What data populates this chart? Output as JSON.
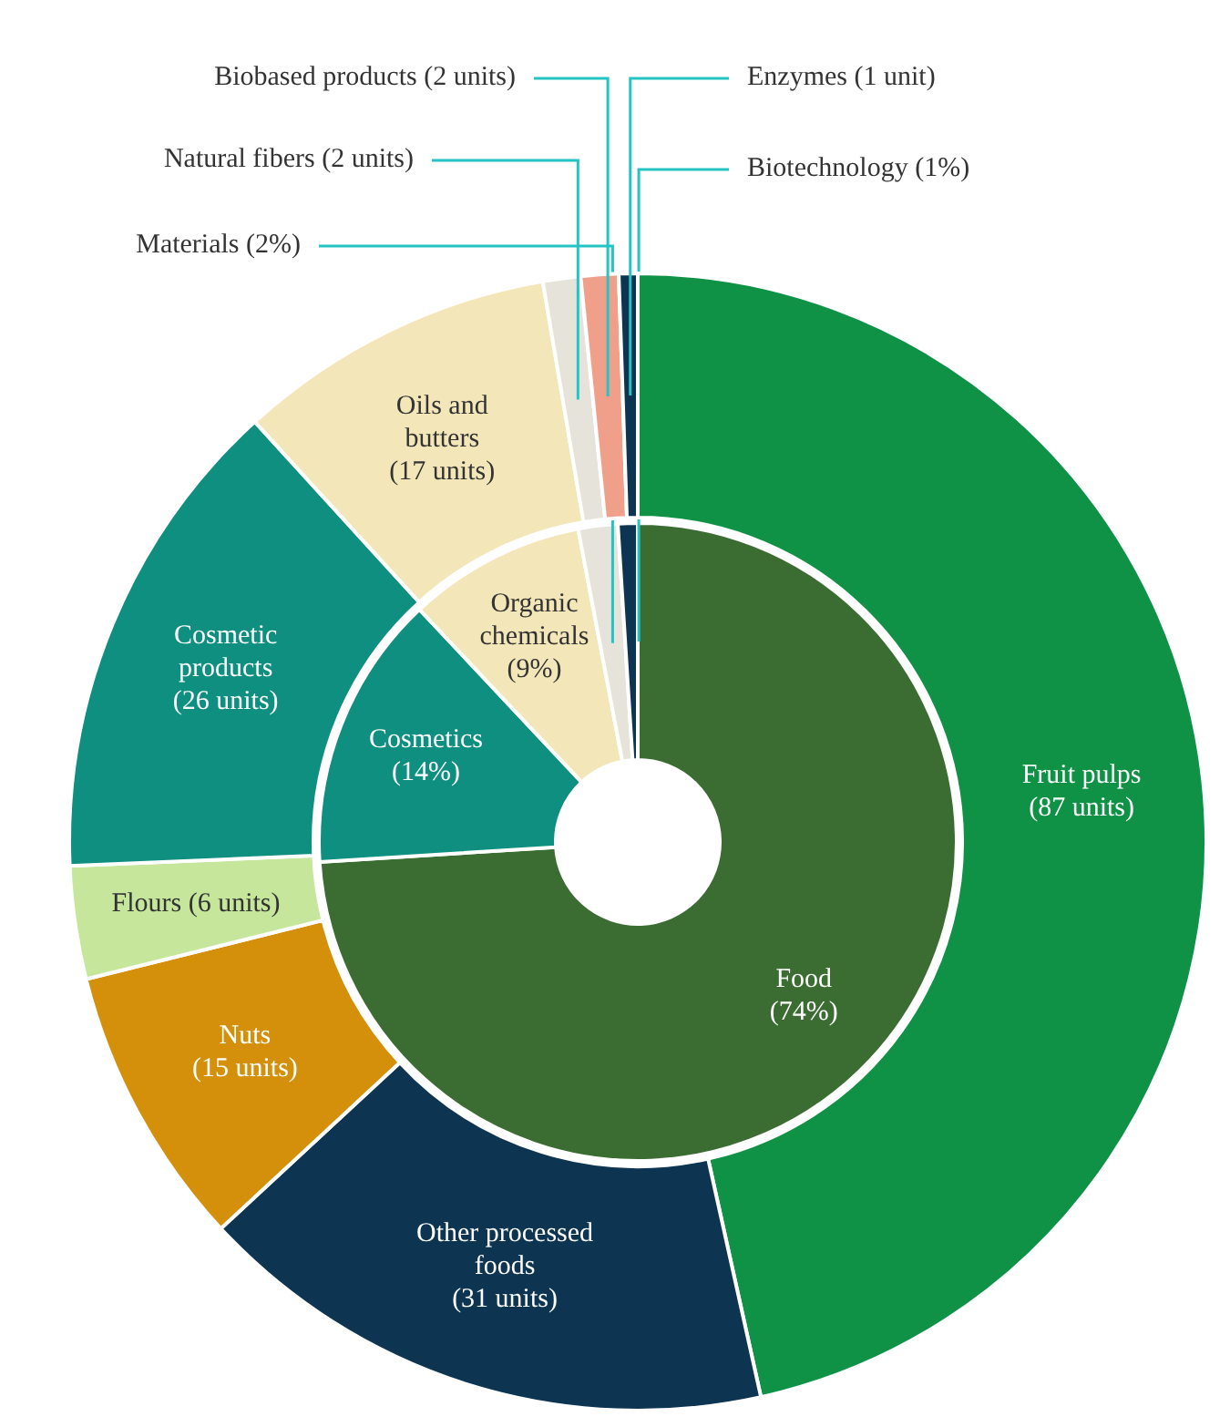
{
  "chart_data": [
    {
      "type": "donut",
      "categories": [
        "Food",
        "Cosmetics",
        "Organic chemicals",
        "Materials",
        "Biotechnology"
      ],
      "values": [
        74,
        14,
        9,
        2,
        1
      ],
      "value_labels": [
        "(74%)",
        "(14%)",
        "(9%)",
        "(2%)",
        "(1%)"
      ],
      "colors": [
        "#3b6d33",
        "#0e8f80",
        "#f3e6b8",
        "#e6e4da",
        "#0d3552"
      ]
    },
    {
      "type": "donut",
      "categories": [
        "Fruit pulps",
        "Other processed foods",
        "Nuts",
        "Flours",
        "Cosmetic products",
        "Oils and butters",
        "Natural fibers",
        "Biobased products",
        "Enzymes"
      ],
      "values": [
        87,
        31,
        15,
        6,
        26,
        17,
        2,
        2,
        1
      ],
      "value_labels": [
        "(87 units)",
        "(31 units)",
        "(15 units)",
        "(6 units)",
        "(26 units)",
        "(17 units)",
        "(2 units)",
        "(2 units)",
        "(1 unit)"
      ],
      "colors": [
        "#0f9245",
        "#0d3552",
        "#d4900b",
        "#c6e69c",
        "#0e8f80",
        "#f3e6b8",
        "#e6e4da",
        "#f0a08a",
        "#0d3552"
      ]
    }
  ]
}
